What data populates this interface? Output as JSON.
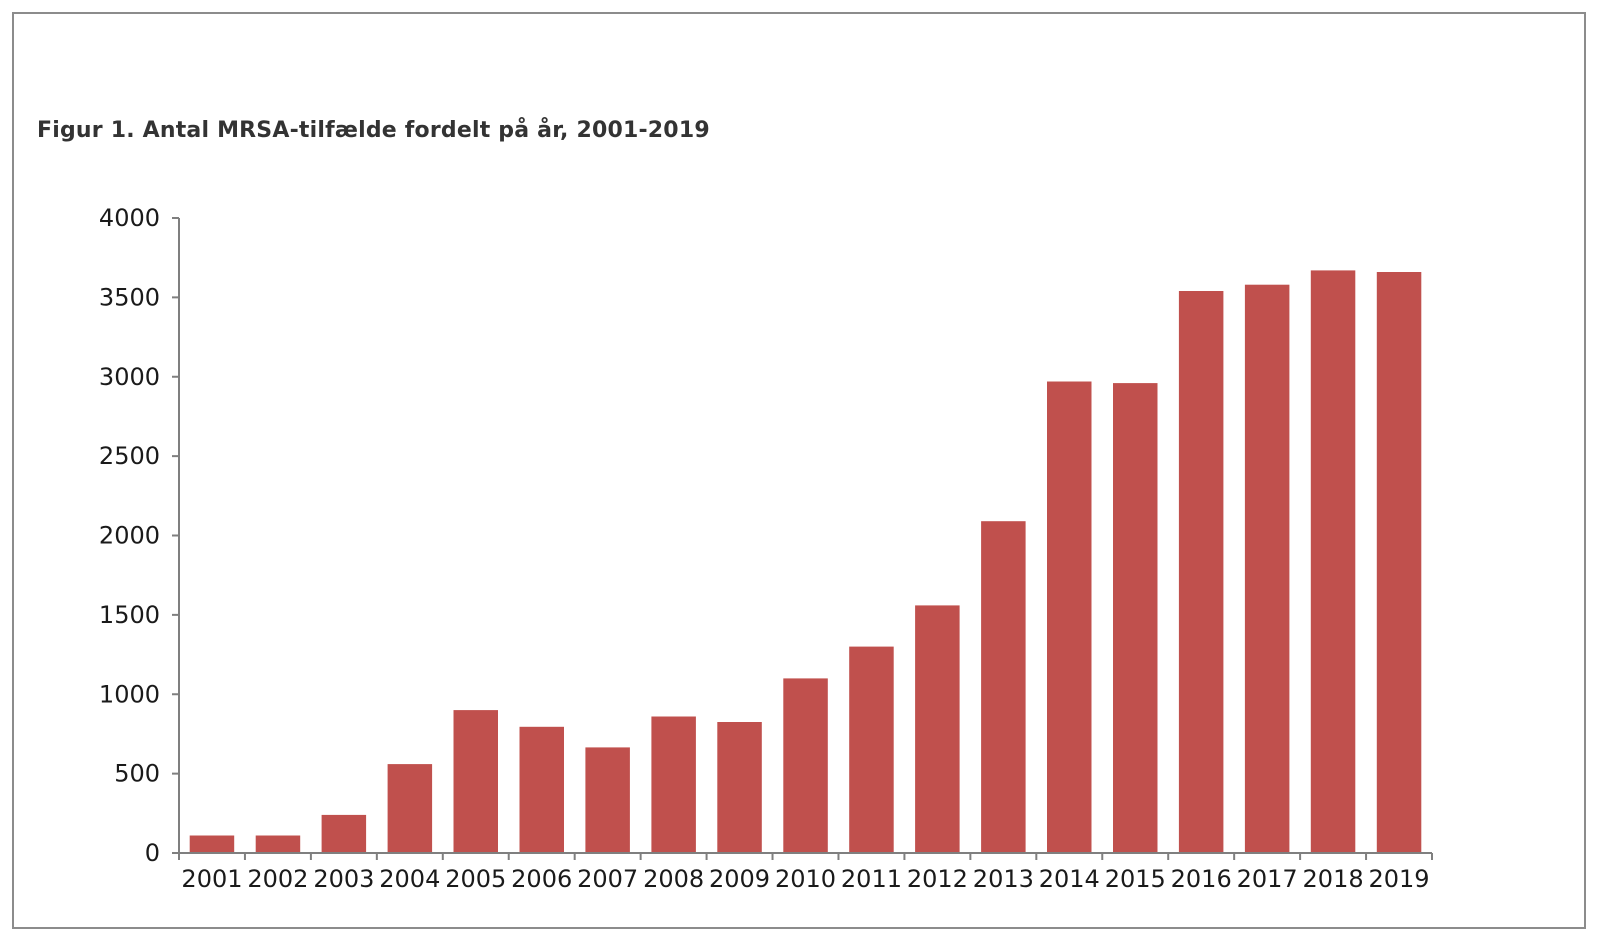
{
  "chart_data": {
    "type": "bar",
    "title": "Figur 1. Antal MRSA-tilfælde fordelt på år, 2001-2019",
    "xlabel": "",
    "ylabel": "",
    "categories": [
      "2001",
      "2002",
      "2003",
      "2004",
      "2005",
      "2006",
      "2007",
      "2008",
      "2009",
      "2010",
      "2011",
      "2012",
      "2013",
      "2014",
      "2015",
      "2016",
      "2017",
      "2018",
      "2019"
    ],
    "values": [
      110,
      110,
      240,
      560,
      900,
      795,
      665,
      860,
      825,
      1100,
      1300,
      1560,
      2090,
      2970,
      2960,
      3540,
      3580,
      3670,
      3660
    ],
    "ylim": [
      0,
      4000
    ],
    "yticks": [
      0,
      500,
      1000,
      1500,
      2000,
      2500,
      3000,
      3500,
      4000
    ],
    "grid": false,
    "legend": "none",
    "bar_color": "#c0504d",
    "axis_color": "#7f7f7f"
  }
}
